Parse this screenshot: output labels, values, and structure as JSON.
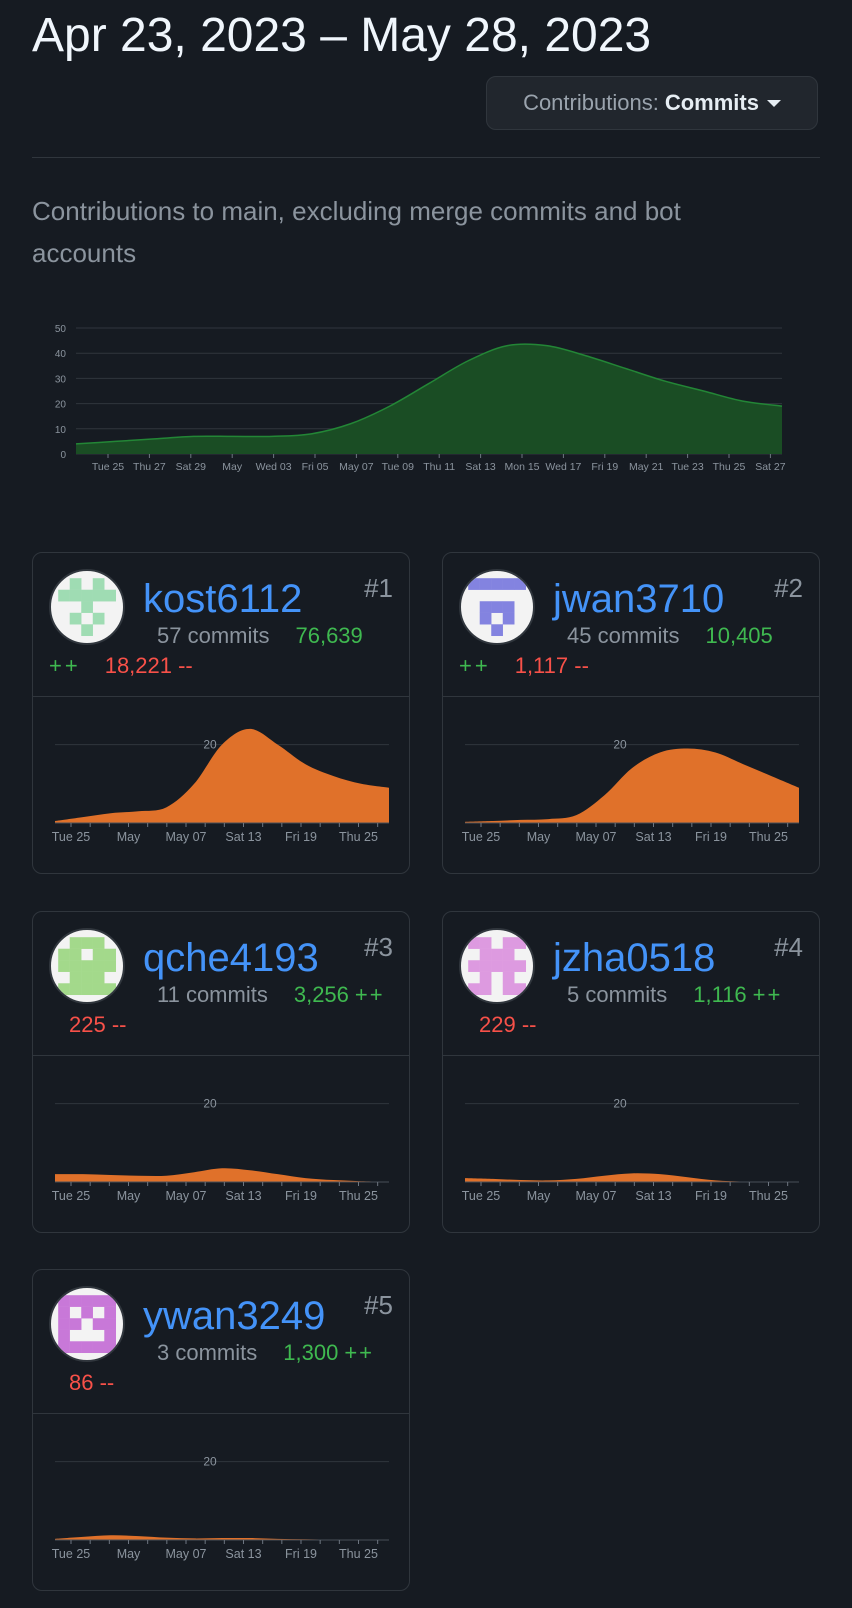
{
  "header": {
    "date_range": "Apr 23, 2023 – May 28, 2023",
    "contrib_label": "Contributions:",
    "contrib_value": "Commits"
  },
  "subtitle": "Contributions to main, excluding merge commits and bot accounts",
  "colors": {
    "main_fill": "#1a4d24",
    "main_stroke": "#238636",
    "user_fill": "#e0712a",
    "link": "#4493f8",
    "add": "#3fb950",
    "del": "#f85149"
  },
  "chart_data": {
    "type": "area",
    "x_ticks": [
      "Tue 25",
      "Thu 27",
      "Sat 29",
      "May",
      "Wed 03",
      "Fri 05",
      "May 07",
      "Tue 09",
      "Thu 11",
      "Sat 13",
      "Mon 15",
      "Wed 17",
      "Fri 19",
      "May 21",
      "Tue 23",
      "Thu 25",
      "Sat 27"
    ],
    "y_ticks": [
      0,
      10,
      20,
      30,
      40,
      50
    ],
    "ylim": [
      0,
      50
    ],
    "x": [
      "Apr 23",
      "Apr 25",
      "Apr 27",
      "Apr 29",
      "May 1",
      "May 3",
      "May 5",
      "May 7",
      "May 9",
      "May 11",
      "May 13",
      "May 15",
      "May 17",
      "May 19",
      "May 21",
      "May 23",
      "May 25",
      "May 27",
      "May 28"
    ],
    "values": [
      4,
      5,
      6,
      7,
      7,
      7,
      8,
      12,
      19,
      28,
      37,
      43,
      43,
      39,
      34,
      29,
      25,
      21,
      19
    ],
    "grid": true
  },
  "users": [
    {
      "rank": "#1",
      "name": "kost6112",
      "commits": "57 commits",
      "additions": "76,639",
      "add_suffix": "++",
      "deletions": "18,221 --",
      "layout": "split",
      "avatar_color": "#9fdcb3",
      "series": [
        0.5,
        1.5,
        2.5,
        3,
        4,
        10,
        20,
        24,
        20,
        15,
        12,
        10,
        9
      ]
    },
    {
      "rank": "#2",
      "name": "jwan3710",
      "commits": "45 commits",
      "additions": "10,405",
      "add_suffix": "++",
      "deletions": "1,117 --",
      "layout": "split",
      "avatar_color": "#8383e0",
      "series": [
        0.3,
        0.5,
        0.8,
        1,
        2,
        7,
        14,
        18,
        19,
        18,
        15,
        12,
        9
      ]
    },
    {
      "rank": "#3",
      "name": "qche4193",
      "commits": "11 commits",
      "additions": "3,256",
      "add_suffix": "++",
      "deletions": "225 --",
      "layout": "inline",
      "avatar_color": "#a3d98b",
      "series": [
        2,
        2,
        1.8,
        1.6,
        1.6,
        2.5,
        3.5,
        3,
        2,
        1,
        0.5,
        0.2,
        0.1
      ]
    },
    {
      "rank": "#4",
      "name": "jzha0518",
      "commits": "5 commits",
      "additions": "1,116",
      "add_suffix": "++",
      "deletions": "229 --",
      "layout": "inline",
      "avatar_color": "#dd9ae0",
      "series": [
        1,
        0.8,
        0.5,
        0.4,
        0.8,
        1.6,
        2.2,
        2,
        1.2,
        0.4,
        0.1,
        0,
        0
      ]
    },
    {
      "rank": "#5",
      "name": "ywan3249",
      "commits": "3 commits",
      "additions": "1,300",
      "add_suffix": "++",
      "deletions": "86 --",
      "layout": "inline",
      "avatar_color": "#c878d8",
      "series": [
        0.3,
        0.8,
        1.2,
        1,
        0.6,
        0.4,
        0.5,
        0.5,
        0.3,
        0.2,
        0.1,
        0,
        0
      ]
    }
  ],
  "card_chart": {
    "x_ticks": [
      "Tue 25",
      "May",
      "May 07",
      "Sat 13",
      "Fri 19",
      "Thu 25"
    ],
    "y_tick": 20,
    "ylim": [
      0,
      25
    ]
  }
}
